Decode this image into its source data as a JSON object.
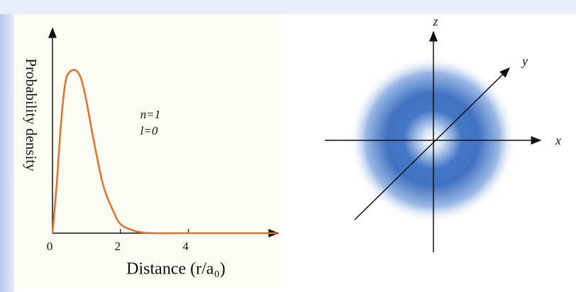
{
  "chart_data": {
    "type": "line",
    "ylabel": "Probability density",
    "xlabel": "Distance (r/a₀)",
    "annotations": [
      "n=1",
      "l=0"
    ],
    "x": [
      0,
      0.125,
      0.25,
      0.375,
      0.5,
      0.69,
      0.85,
      1,
      1.17,
      1.48,
      1.79,
      2,
      2.3,
      2.6,
      3,
      4,
      5,
      6,
      6.6
    ],
    "values": [
      0,
      0.27,
      0.6,
      0.82,
      0.88,
      0.89,
      0.84,
      0.72,
      0.55,
      0.27,
      0.12,
      0.05,
      0.02,
      0.005,
      0,
      0,
      0,
      0,
      0
    ],
    "color": "#e0702a",
    "xlim": [
      0,
      6.7
    ],
    "xticks": [
      0,
      2,
      4
    ],
    "ylim": [
      0,
      1.12
    ]
  },
  "figure": {
    "axis_labels": [
      "z",
      "y",
      "x"
    ]
  }
}
